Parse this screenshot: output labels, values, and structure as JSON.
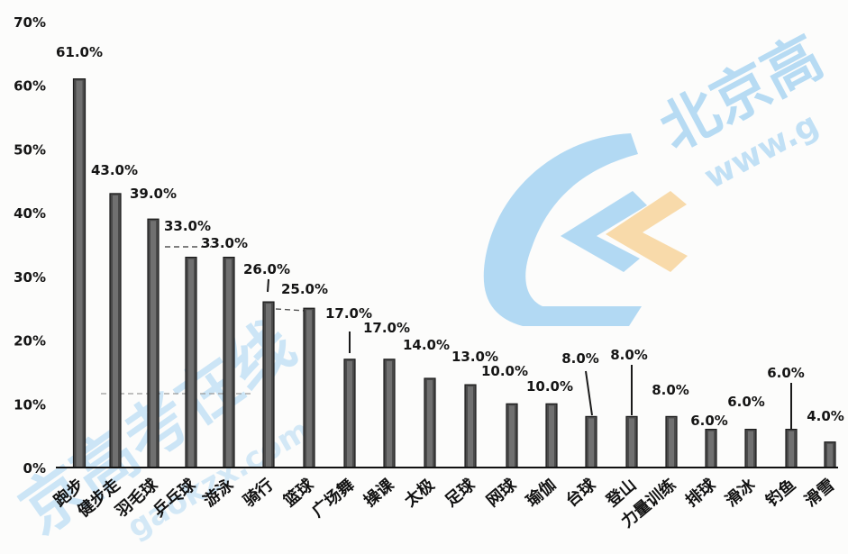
{
  "chart_data": {
    "type": "bar",
    "categories": [
      "跑步",
      "健步走",
      "羽毛球",
      "乒乓球",
      "游泳",
      "骑行",
      "篮球",
      "广场舞",
      "操课",
      "太极",
      "足球",
      "网球",
      "瑜伽",
      "台球",
      "登山",
      "力量训练",
      "排球",
      "滑冰",
      "钓鱼",
      "滑雪"
    ],
    "values": [
      61.0,
      43.0,
      39.0,
      33.0,
      33.0,
      26.0,
      25.0,
      17.0,
      17.0,
      14.0,
      13.0,
      10.0,
      10.0,
      8.0,
      8.0,
      8.0,
      6.0,
      6.0,
      6.0,
      4.0
    ],
    "data_labels": [
      "61.0%",
      "43.0%",
      "39.0%",
      "33.0%",
      "33.0%",
      "26.0%",
      "25.0%",
      "17.0%",
      "17.0%",
      "14.0%",
      "13.0%",
      "10.0%",
      "10.0%",
      "8.0%",
      "8.0%",
      "8.0%",
      "6.0%",
      "6.0%",
      "6.0%",
      "4.0%"
    ],
    "y_tick_values": [
      0,
      10,
      20,
      30,
      40,
      50,
      60,
      70
    ],
    "y_tick_labels": [
      "0%",
      "10%",
      "20%",
      "30%",
      "40%",
      "50%",
      "60%",
      "70%"
    ],
    "ylim": [
      0,
      70
    ],
    "grid": false,
    "legend": "none",
    "bar_color": "#4a4a4a",
    "bar_stripe_color": "#8f8f8f",
    "bar_outline_color": "#1a1a1a",
    "axis_color": "#111111"
  },
  "watermark": {
    "top_text": "北京高",
    "top_url": "www.g",
    "bottom_text": "京高考在线",
    "bottom_url": "gaokzx.com",
    "logo_blue": "#a6d4f2",
    "logo_orange": "#f8d59c"
  }
}
